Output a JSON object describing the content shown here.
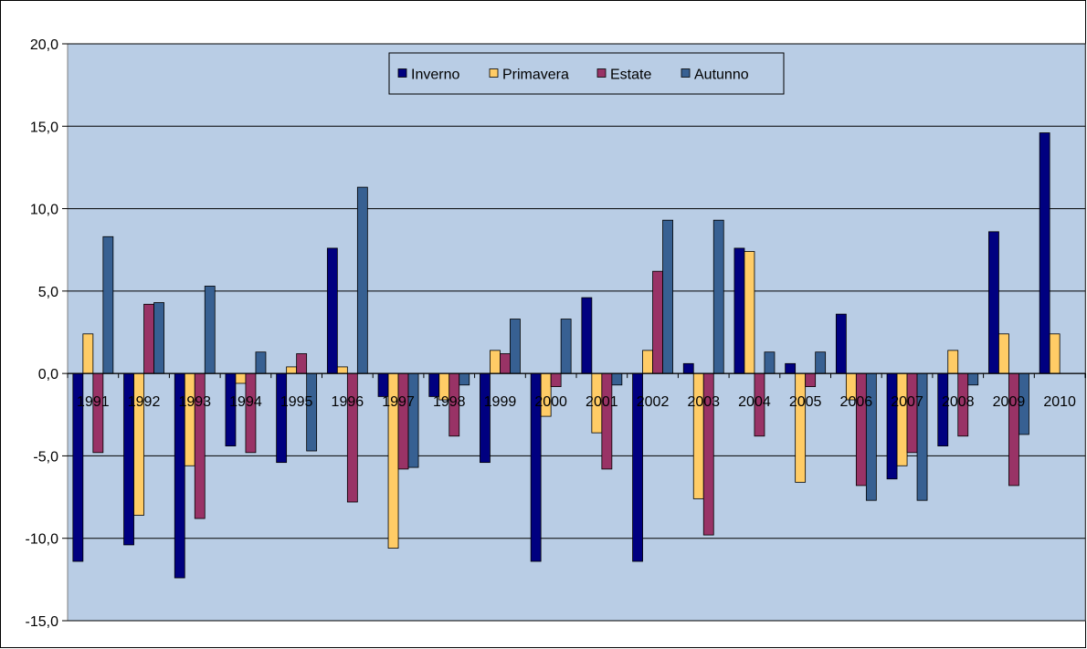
{
  "chart_data": {
    "type": "bar",
    "title": "",
    "xlabel": "",
    "ylabel": "",
    "ylim": [
      -15,
      20
    ],
    "yticks": [
      "20,0",
      "15,0",
      "10,0",
      "5,0",
      "0,0",
      "-5,0",
      "-10,0",
      "-15,0"
    ],
    "grid": true,
    "legend_position": "top-center",
    "plot_background": "#B9CDE5",
    "categories": [
      "1991",
      "1992",
      "1993",
      "1994",
      "1995",
      "1996",
      "1997",
      "1998",
      "1999",
      "2000",
      "2001",
      "2002",
      "2003",
      "2004",
      "2005",
      "2006",
      "2007",
      "2008",
      "2009",
      "2010"
    ],
    "series": [
      {
        "name": "Inverno",
        "color": "#000080",
        "values": [
          -11.4,
          -10.4,
          -12.4,
          -4.4,
          -5.4,
          7.6,
          -1.4,
          -1.4,
          -5.4,
          -11.4,
          4.6,
          -11.4,
          0.6,
          7.6,
          0.6,
          3.6,
          -6.4,
          -4.4,
          8.6,
          14.6
        ]
      },
      {
        "name": "Primavera",
        "color": "#FFCC66",
        "values": [
          2.4,
          -8.6,
          -5.6,
          -0.6,
          0.4,
          0.4,
          -10.6,
          -1.6,
          1.4,
          -2.6,
          -3.6,
          1.4,
          -7.6,
          7.4,
          -6.6,
          -1.6,
          -5.6,
          1.4,
          2.4,
          2.4
        ]
      },
      {
        "name": "Estate",
        "color": "#993366",
        "values": [
          -4.8,
          4.2,
          -8.8,
          -4.8,
          1.2,
          -7.8,
          -5.8,
          -3.8,
          1.2,
          -0.8,
          -5.8,
          6.2,
          -9.8,
          -3.8,
          -0.8,
          -6.8,
          -4.8,
          -3.8,
          -6.8,
          0
        ]
      },
      {
        "name": "Autunno",
        "color": "#376092",
        "values": [
          8.3,
          4.3,
          5.3,
          1.3,
          -4.7,
          11.3,
          -5.7,
          -0.7,
          3.3,
          3.3,
          -0.7,
          9.3,
          9.3,
          1.3,
          1.3,
          -7.7,
          -7.7,
          -0.7,
          -3.7,
          0
        ]
      }
    ]
  }
}
